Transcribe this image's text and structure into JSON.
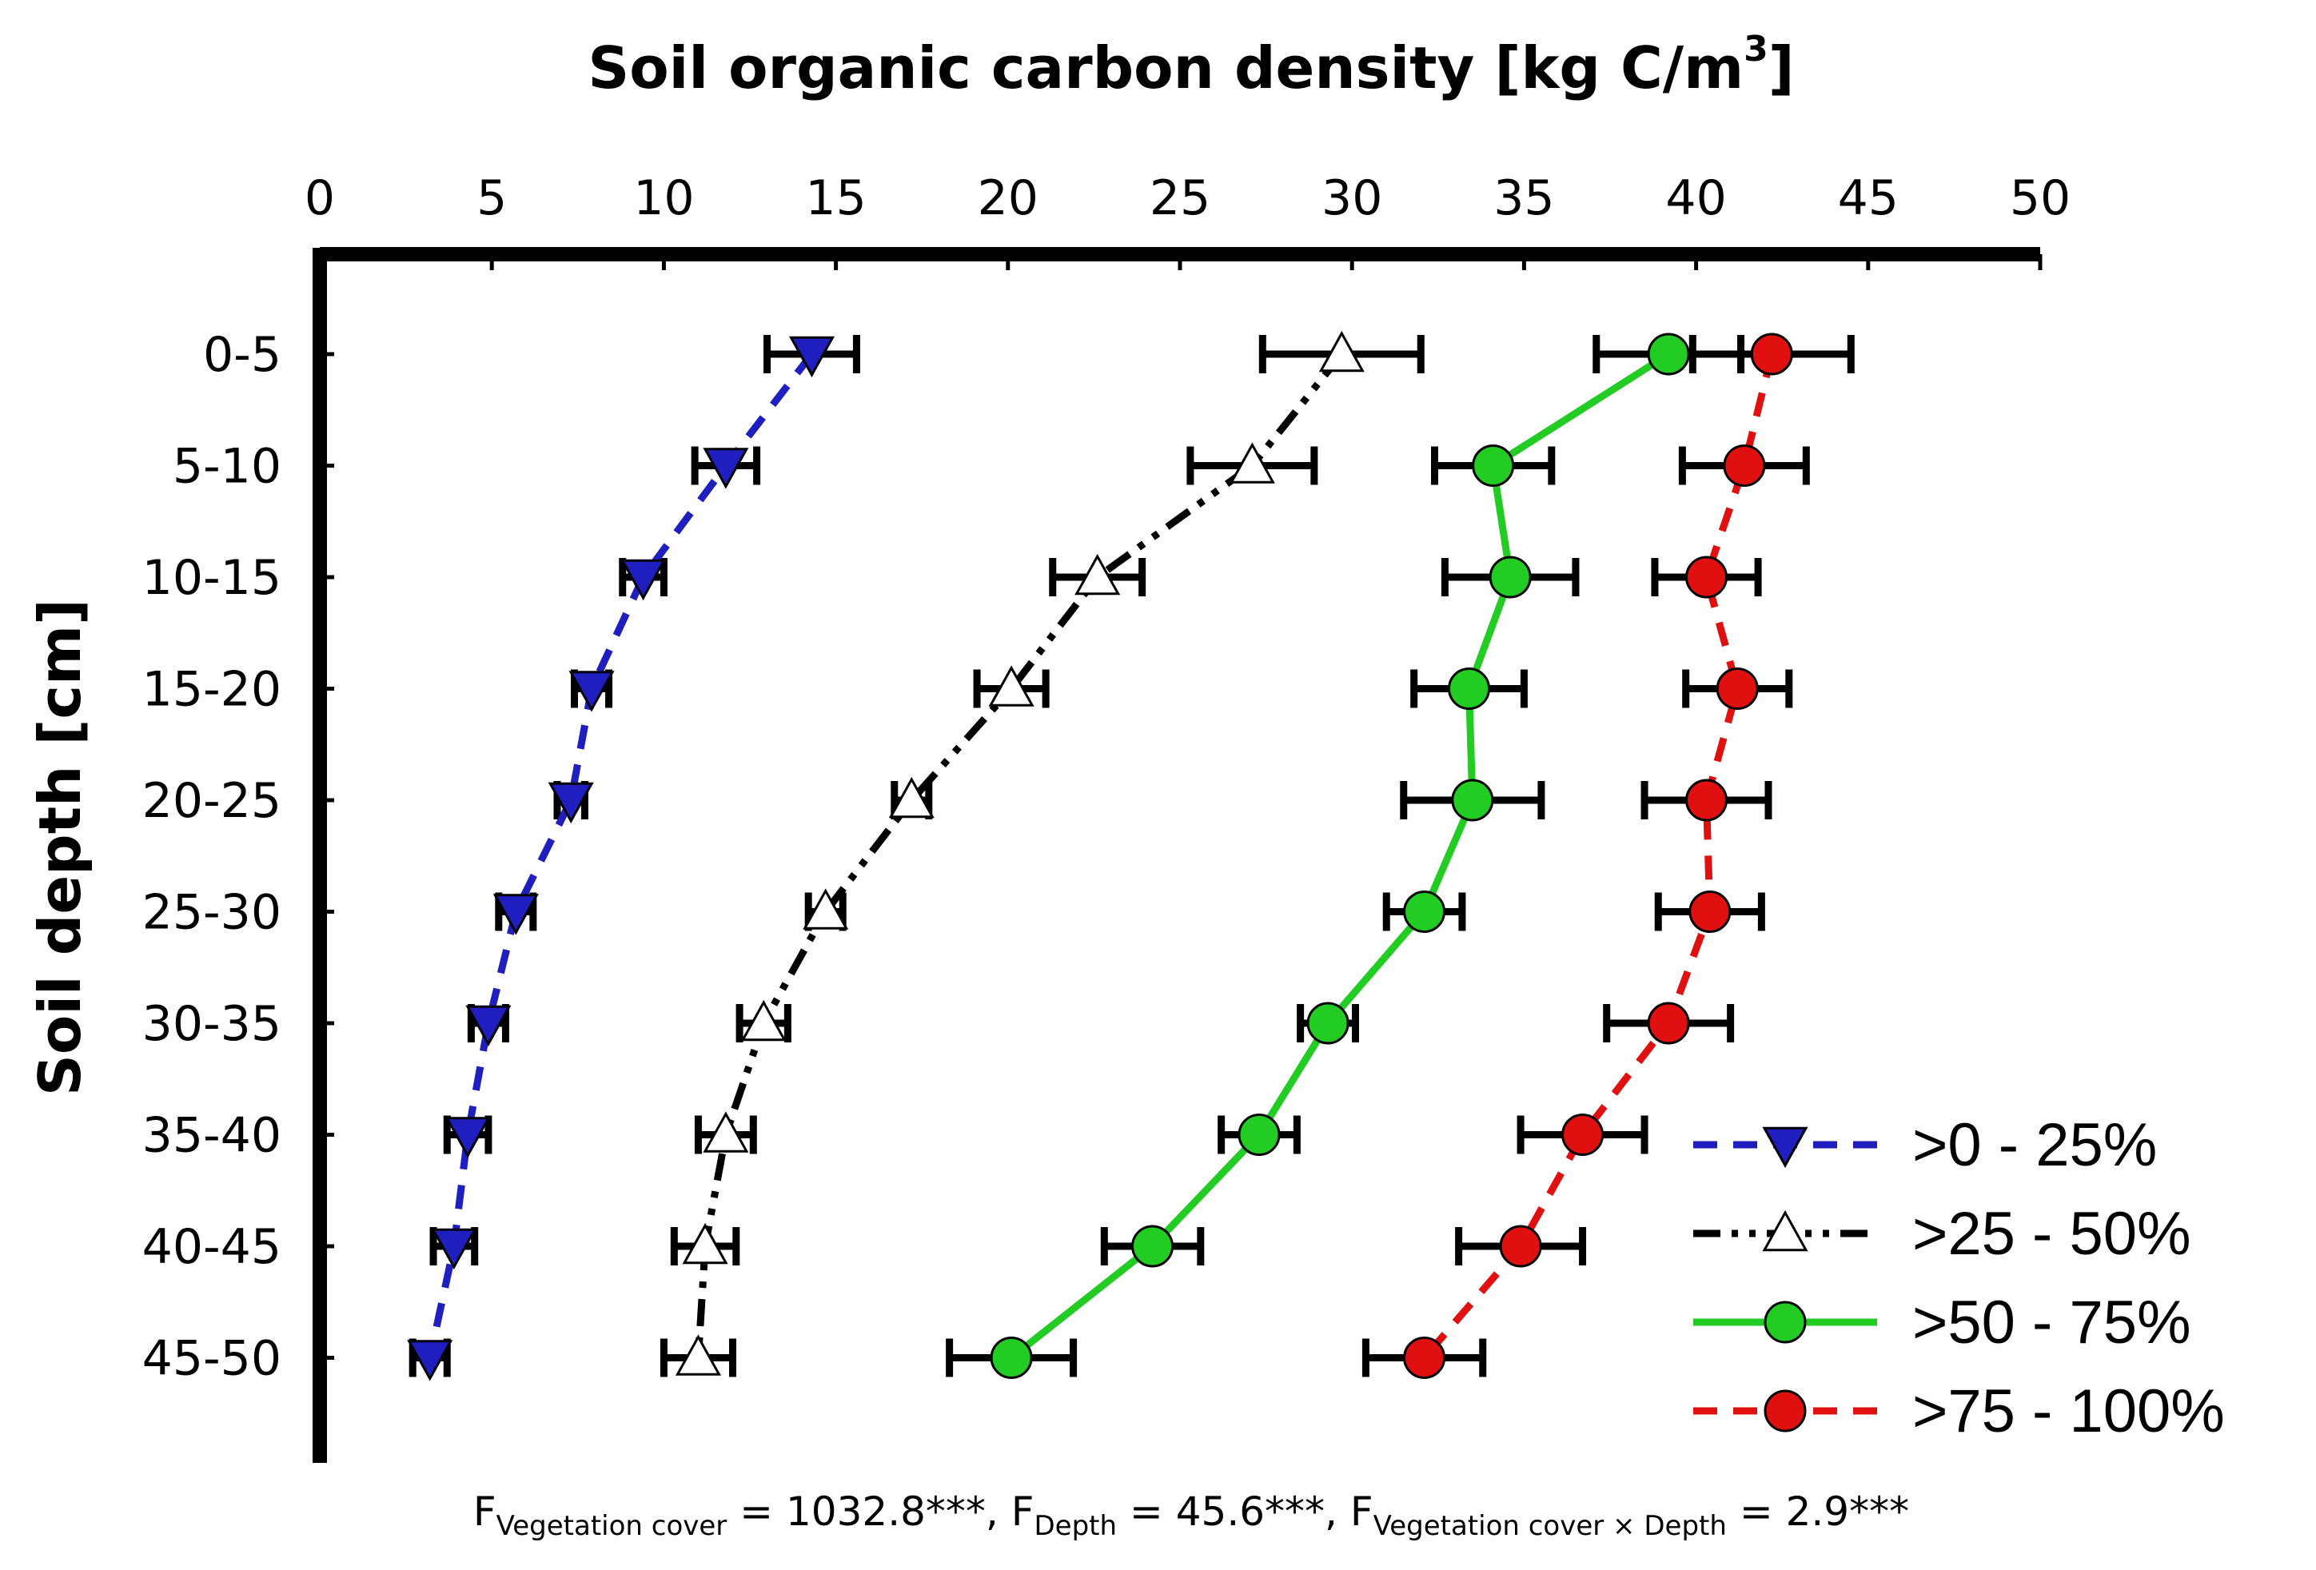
{
  "chart_data": {
    "type": "line",
    "title": "Soil organic carbon density [kg C/m",
    "title_superscript": "3",
    "title_close": "]",
    "xlabel": "Soil organic carbon density [kg C/m3]",
    "ylabel": "Soil depth [cm]",
    "xlim": [
      0,
      50
    ],
    "x_ticks": [
      "0",
      "5",
      "10",
      "15",
      "20",
      "25",
      "30",
      "35",
      "40",
      "45",
      "50"
    ],
    "x_axis_position": "top",
    "grid": false,
    "legend_position": "bottom-right",
    "categories": [
      "0-5",
      "5-10",
      "10-15",
      "15-20",
      "20-25",
      "25-30",
      "30-35",
      "35-40",
      "40-45",
      "45-50"
    ],
    "series": [
      {
        "name": ">0 - 25%",
        "color": "#1f1fbf",
        "line_style": "dashed",
        "marker": "triangle-down-filled",
        "values": [
          14.3,
          11.8,
          9.4,
          7.9,
          7.3,
          5.7,
          4.9,
          4.3,
          3.9,
          3.2
        ],
        "errors": [
          1.3,
          0.9,
          0.6,
          0.5,
          0.4,
          0.5,
          0.5,
          0.6,
          0.6,
          0.5
        ]
      },
      {
        "name": ">25 - 50%",
        "color": "#000000",
        "line_style": "dash-dot-dot",
        "marker": "triangle-up-open",
        "values": [
          29.7,
          27.1,
          22.6,
          20.1,
          17.2,
          14.7,
          12.9,
          11.8,
          11.2,
          11.0
        ],
        "errors": [
          2.3,
          1.8,
          1.3,
          1.0,
          0.5,
          0.5,
          0.7,
          0.8,
          0.9,
          1.0
        ]
      },
      {
        "name": ">50 - 75%",
        "color": "#22cc22",
        "line_style": "solid",
        "marker": "circle-filled",
        "values": [
          39.2,
          34.1,
          34.6,
          33.4,
          33.5,
          32.1,
          29.3,
          27.3,
          24.2,
          20.1
        ],
        "errors": [
          2.1,
          1.7,
          1.9,
          1.6,
          2.0,
          1.1,
          0.8,
          1.1,
          1.4,
          1.8
        ]
      },
      {
        "name": ">75 - 100%",
        "color": "#e01010",
        "line_style": "dashed",
        "marker": "circle-filled",
        "values": [
          42.2,
          41.4,
          40.3,
          41.2,
          40.3,
          40.4,
          39.2,
          36.7,
          34.9,
          32.1
        ],
        "errors": [
          2.3,
          1.8,
          1.5,
          1.5,
          1.8,
          1.5,
          1.8,
          1.8,
          1.8,
          1.7
        ]
      }
    ],
    "footnote": {
      "f1_sub": "Vegetation cover",
      "f1_value": " = 1032.8***, ",
      "f2_sub": "Depth",
      "f2_value": " = 45.6***, ",
      "f3_sub": "Vegetation cover × Depth",
      "f3_value": " = 2.9***",
      "f_letter": "F"
    }
  }
}
